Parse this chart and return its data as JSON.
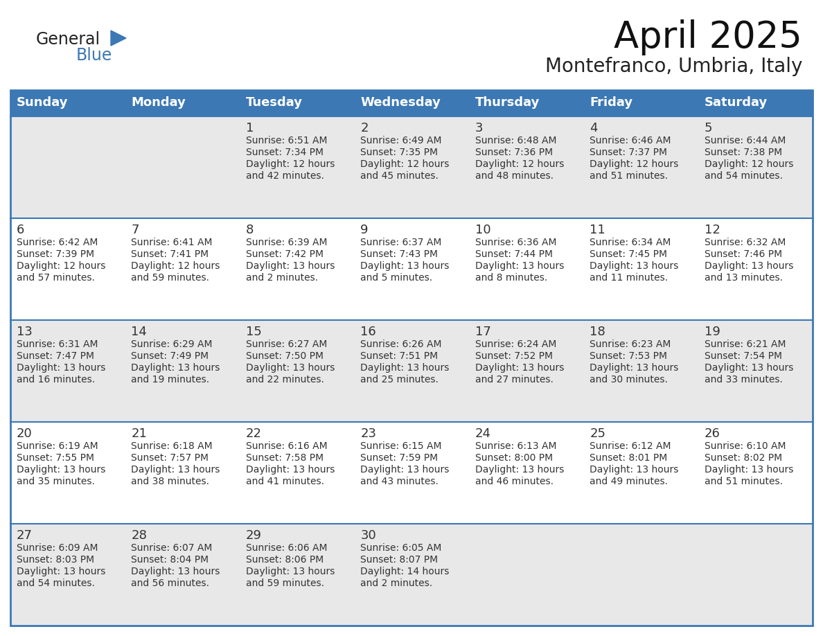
{
  "title": "April 2025",
  "subtitle": "Montefranco, Umbria, Italy",
  "days_of_week": [
    "Sunday",
    "Monday",
    "Tuesday",
    "Wednesday",
    "Thursday",
    "Friday",
    "Saturday"
  ],
  "header_bg": "#3c78b4",
  "header_text": "#ffffff",
  "row_bg_light": "#e8e8e8",
  "row_bg_white": "#ffffff",
  "border_color": "#3c78b4",
  "text_color": "#333333",
  "calendar_data": [
    [
      {
        "day": "",
        "sunrise": "",
        "sunset": "",
        "daylight": ""
      },
      {
        "day": "",
        "sunrise": "",
        "sunset": "",
        "daylight": ""
      },
      {
        "day": "1",
        "sunrise": "6:51 AM",
        "sunset": "7:34 PM",
        "daylight": "12 hours and 42 minutes."
      },
      {
        "day": "2",
        "sunrise": "6:49 AM",
        "sunset": "7:35 PM",
        "daylight": "12 hours and 45 minutes."
      },
      {
        "day": "3",
        "sunrise": "6:48 AM",
        "sunset": "7:36 PM",
        "daylight": "12 hours and 48 minutes."
      },
      {
        "day": "4",
        "sunrise": "6:46 AM",
        "sunset": "7:37 PM",
        "daylight": "12 hours and 51 minutes."
      },
      {
        "day": "5",
        "sunrise": "6:44 AM",
        "sunset": "7:38 PM",
        "daylight": "12 hours and 54 minutes."
      }
    ],
    [
      {
        "day": "6",
        "sunrise": "6:42 AM",
        "sunset": "7:39 PM",
        "daylight": "12 hours and 57 minutes."
      },
      {
        "day": "7",
        "sunrise": "6:41 AM",
        "sunset": "7:41 PM",
        "daylight": "12 hours and 59 minutes."
      },
      {
        "day": "8",
        "sunrise": "6:39 AM",
        "sunset": "7:42 PM",
        "daylight": "13 hours and 2 minutes."
      },
      {
        "day": "9",
        "sunrise": "6:37 AM",
        "sunset": "7:43 PM",
        "daylight": "13 hours and 5 minutes."
      },
      {
        "day": "10",
        "sunrise": "6:36 AM",
        "sunset": "7:44 PM",
        "daylight": "13 hours and 8 minutes."
      },
      {
        "day": "11",
        "sunrise": "6:34 AM",
        "sunset": "7:45 PM",
        "daylight": "13 hours and 11 minutes."
      },
      {
        "day": "12",
        "sunrise": "6:32 AM",
        "sunset": "7:46 PM",
        "daylight": "13 hours and 13 minutes."
      }
    ],
    [
      {
        "day": "13",
        "sunrise": "6:31 AM",
        "sunset": "7:47 PM",
        "daylight": "13 hours and 16 minutes."
      },
      {
        "day": "14",
        "sunrise": "6:29 AM",
        "sunset": "7:49 PM",
        "daylight": "13 hours and 19 minutes."
      },
      {
        "day": "15",
        "sunrise": "6:27 AM",
        "sunset": "7:50 PM",
        "daylight": "13 hours and 22 minutes."
      },
      {
        "day": "16",
        "sunrise": "6:26 AM",
        "sunset": "7:51 PM",
        "daylight": "13 hours and 25 minutes."
      },
      {
        "day": "17",
        "sunrise": "6:24 AM",
        "sunset": "7:52 PM",
        "daylight": "13 hours and 27 minutes."
      },
      {
        "day": "18",
        "sunrise": "6:23 AM",
        "sunset": "7:53 PM",
        "daylight": "13 hours and 30 minutes."
      },
      {
        "day": "19",
        "sunrise": "6:21 AM",
        "sunset": "7:54 PM",
        "daylight": "13 hours and 33 minutes."
      }
    ],
    [
      {
        "day": "20",
        "sunrise": "6:19 AM",
        "sunset": "7:55 PM",
        "daylight": "13 hours and 35 minutes."
      },
      {
        "day": "21",
        "sunrise": "6:18 AM",
        "sunset": "7:57 PM",
        "daylight": "13 hours and 38 minutes."
      },
      {
        "day": "22",
        "sunrise": "6:16 AM",
        "sunset": "7:58 PM",
        "daylight": "13 hours and 41 minutes."
      },
      {
        "day": "23",
        "sunrise": "6:15 AM",
        "sunset": "7:59 PM",
        "daylight": "13 hours and 43 minutes."
      },
      {
        "day": "24",
        "sunrise": "6:13 AM",
        "sunset": "8:00 PM",
        "daylight": "13 hours and 46 minutes."
      },
      {
        "day": "25",
        "sunrise": "6:12 AM",
        "sunset": "8:01 PM",
        "daylight": "13 hours and 49 minutes."
      },
      {
        "day": "26",
        "sunrise": "6:10 AM",
        "sunset": "8:02 PM",
        "daylight": "13 hours and 51 minutes."
      }
    ],
    [
      {
        "day": "27",
        "sunrise": "6:09 AM",
        "sunset": "8:03 PM",
        "daylight": "13 hours and 54 minutes."
      },
      {
        "day": "28",
        "sunrise": "6:07 AM",
        "sunset": "8:04 PM",
        "daylight": "13 hours and 56 minutes."
      },
      {
        "day": "29",
        "sunrise": "6:06 AM",
        "sunset": "8:06 PM",
        "daylight": "13 hours and 59 minutes."
      },
      {
        "day": "30",
        "sunrise": "6:05 AM",
        "sunset": "8:07 PM",
        "daylight": "14 hours and 2 minutes."
      },
      {
        "day": "",
        "sunrise": "",
        "sunset": "",
        "daylight": ""
      },
      {
        "day": "",
        "sunrise": "",
        "sunset": "",
        "daylight": ""
      },
      {
        "day": "",
        "sunrise": "",
        "sunset": "",
        "daylight": ""
      }
    ]
  ],
  "logo_text1": "General",
  "logo_text2": "Blue",
  "logo_text_color1": "#222222",
  "logo_text_color2": "#3c78b4",
  "logo_triangle_color": "#3c78b4",
  "title_fontsize": 38,
  "subtitle_fontsize": 20,
  "header_fontsize": 13,
  "day_num_fontsize": 13,
  "cell_text_fontsize": 10
}
